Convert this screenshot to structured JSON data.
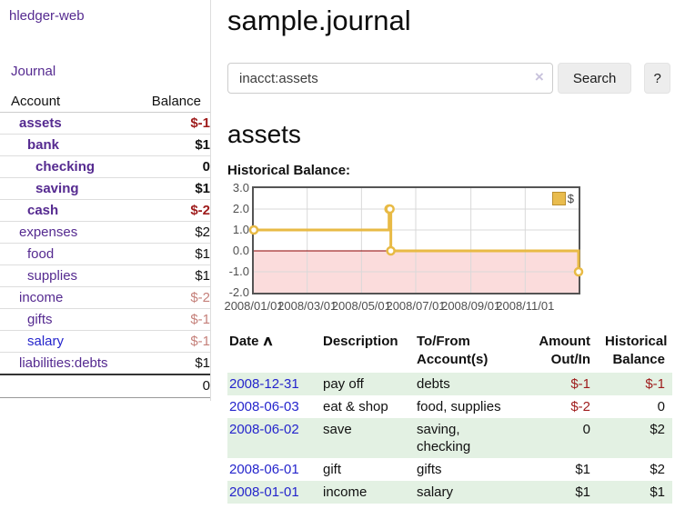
{
  "sidebar": {
    "brand": "hledger-web",
    "nav_journal": "Journal",
    "headers": {
      "account": "Account",
      "balance": "Balance"
    },
    "accounts": [
      {
        "name": "assets",
        "balance": "$-1",
        "depth": 1,
        "bold": true,
        "neg": "strong"
      },
      {
        "name": "bank",
        "balance": "$1",
        "depth": 2,
        "bold": true
      },
      {
        "name": "checking",
        "balance": "0",
        "depth": 3,
        "bold": true
      },
      {
        "name": "saving",
        "balance": "$1",
        "depth": 3,
        "bold": true
      },
      {
        "name": "cash",
        "balance": "$-2",
        "depth": 2,
        "bold": true,
        "neg": "strong"
      },
      {
        "name": "expenses",
        "balance": "$2",
        "depth": 1,
        "bold": false
      },
      {
        "name": "food",
        "balance": "$1",
        "depth": 2,
        "bold": false
      },
      {
        "name": "supplies",
        "balance": "$1",
        "depth": 2,
        "bold": false
      },
      {
        "name": "income",
        "balance": "$-2",
        "depth": 1,
        "bold": false,
        "neg": "soft"
      },
      {
        "name": "gifts",
        "balance": "$-1",
        "depth": 2,
        "bold": false,
        "neg": "soft"
      },
      {
        "name": "salary",
        "balance": "$-1",
        "depth": 2,
        "bold": false,
        "neg": "soft",
        "link": "blue"
      },
      {
        "name": "liabilities:debts",
        "balance": "$1",
        "depth": 1,
        "bold": false
      }
    ],
    "total": "0"
  },
  "main": {
    "title": "sample.journal",
    "search": {
      "value": "inacct:assets",
      "clear_icon": "×",
      "button": "Search",
      "help": "?"
    },
    "account_heading": "assets",
    "chart_heading": "Historical Balance:"
  },
  "chart_data": {
    "type": "line",
    "title": "Historical Balance",
    "step": true,
    "legend": [
      {
        "label": "$",
        "color": "#e9bc4e"
      }
    ],
    "legend_position": "top-right",
    "grid": true,
    "ylim": [
      -2,
      3
    ],
    "x_days_total": 365,
    "x_ticks": [
      {
        "label": "2008/01/01",
        "day": 0
      },
      {
        "label": "2008/03/01",
        "day": 60
      },
      {
        "label": "2008/05/01",
        "day": 121
      },
      {
        "label": "2008/07/01",
        "day": 182
      },
      {
        "label": "2008/09/01",
        "day": 244
      },
      {
        "label": "2008/11/01",
        "day": 305
      }
    ],
    "y_ticks": [
      {
        "label": "3.0",
        "value": 3
      },
      {
        "label": "2.0",
        "value": 2
      },
      {
        "label": "1.0",
        "value": 1
      },
      {
        "label": "0.0",
        "value": 0
      },
      {
        "label": "-1.0",
        "value": -1
      },
      {
        "label": "-2.0",
        "value": -2
      }
    ],
    "points": [
      {
        "date": "2008-01-01",
        "day": 0,
        "value": 1
      },
      {
        "date": "2008-06-01",
        "day": 152,
        "value": 2
      },
      {
        "date": "2008-06-02",
        "day": 153,
        "value": 2
      },
      {
        "date": "2008-06-03",
        "day": 154,
        "value": 0
      },
      {
        "date": "2008-12-31",
        "day": 365,
        "value": -1
      }
    ],
    "line_color": "#e8ba45",
    "marker_fill": "#ffffff",
    "grid_color": "#d9d9d9",
    "negative_region_color": "#fbdcdc",
    "zero_line_color": "#8b0000"
  },
  "transactions": {
    "sort_icon": "∧",
    "headers": [
      {
        "line1": "Date",
        "line2": ""
      },
      {
        "line1": "Description",
        "line2": ""
      },
      {
        "line1": "To/From",
        "line2": "Account(s)"
      },
      {
        "line1": "Amount",
        "line2": "Out/In"
      },
      {
        "line1": "Historical",
        "line2": "Balance"
      }
    ],
    "rows": [
      {
        "date": "2008-12-31",
        "description": "pay off",
        "accounts": "debts",
        "amount": "$-1",
        "amount_neg": true,
        "balance": "$-1",
        "balance_neg": true
      },
      {
        "date": "2008-06-03",
        "description": "eat & shop",
        "accounts": "food, supplies",
        "amount": "$-2",
        "amount_neg": true,
        "balance": "0",
        "balance_neg": false
      },
      {
        "date": "2008-06-02",
        "description": "save",
        "accounts": "saving, checking",
        "amount": "0",
        "amount_neg": false,
        "balance": "$2",
        "balance_neg": false
      },
      {
        "date": "2008-06-01",
        "description": "gift",
        "accounts": "gifts",
        "amount": "$1",
        "amount_neg": false,
        "balance": "$2",
        "balance_neg": false
      },
      {
        "date": "2008-01-01",
        "description": "income",
        "accounts": "salary",
        "amount": "$1",
        "amount_neg": false,
        "balance": "$1",
        "balance_neg": false
      }
    ]
  }
}
